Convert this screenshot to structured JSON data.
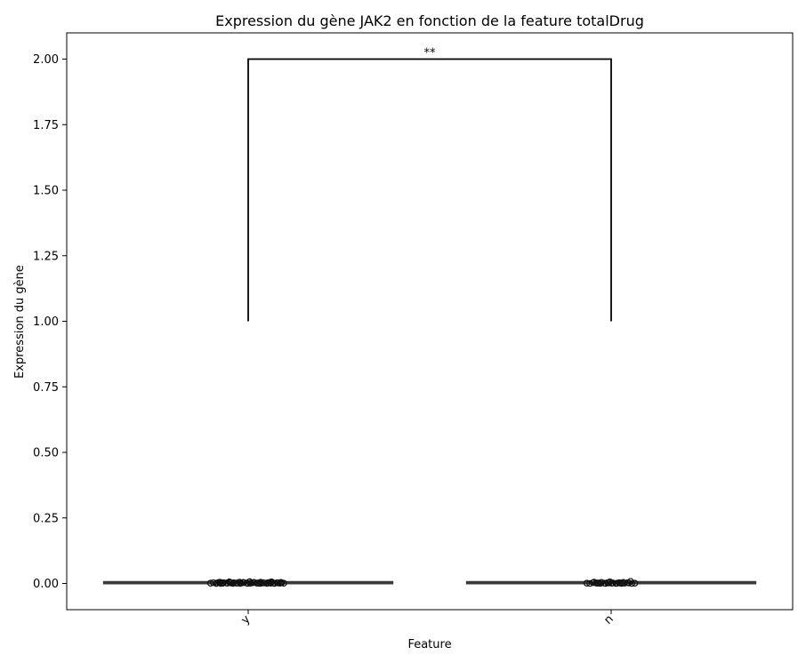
{
  "chart_data": {
    "type": "box",
    "title": "Expression du gène JAK2 en fonction de la feature totalDrug",
    "xlabel": "Feature",
    "ylabel": "Expression du gène",
    "categories": [
      "y",
      "n"
    ],
    "ylim": [
      -0.1,
      2.1
    ],
    "yticks": [
      0.0,
      0.25,
      0.5,
      0.75,
      1.0,
      1.25,
      1.5,
      1.75,
      2.0
    ],
    "ytick_labels": [
      "0.00",
      "0.25",
      "0.50",
      "0.75",
      "1.00",
      "1.25",
      "1.50",
      "1.75",
      "2.00"
    ],
    "grid": false,
    "box_color": "#3a3a3a",
    "boxes": [
      {
        "category": "y",
        "q1": 0.0,
        "median": 0.002,
        "q3": 0.004,
        "whisker_low": 0.0,
        "whisker_high": 0.006
      },
      {
        "category": "n",
        "q1": 0.0,
        "median": 0.002,
        "q3": 0.004,
        "whisker_low": 0.0,
        "whisker_high": 0.006
      }
    ],
    "points": [
      {
        "category": "y",
        "values": [
          0.001,
          0.003,
          0.0,
          0.004,
          0.002,
          0.005,
          0.001,
          0.0,
          0.003,
          0.002,
          0.006,
          0.001,
          0.004,
          0.0,
          0.002,
          0.003,
          0.001,
          0.005,
          0.002,
          0.0,
          0.004,
          0.001,
          0.003,
          0.002,
          0.007,
          0.0,
          0.001,
          0.003,
          0.002,
          0.004,
          0.001,
          0.0,
          0.002,
          0.005,
          0.003,
          0.001,
          0.002,
          0.0,
          0.004,
          0.003,
          0.001,
          0.002,
          0.006,
          0.0,
          0.003,
          0.001,
          0.002,
          0.004,
          0.001,
          0.003
        ]
      },
      {
        "category": "n",
        "values": [
          0.001,
          0.0,
          0.003,
          0.002,
          0.005,
          0.001,
          0.0,
          0.002,
          0.004,
          0.001,
          0.003,
          0.0,
          0.002,
          0.001,
          0.006,
          0.002,
          0.0,
          0.003,
          0.001,
          0.002,
          0.004,
          0.0,
          0.001,
          0.003,
          0.008,
          0.002,
          0.0,
          0.001
        ]
      }
    ],
    "significance": {
      "from": "y",
      "to": "n",
      "y_low": 1.0,
      "y_high": 2.0,
      "label": "**"
    }
  }
}
